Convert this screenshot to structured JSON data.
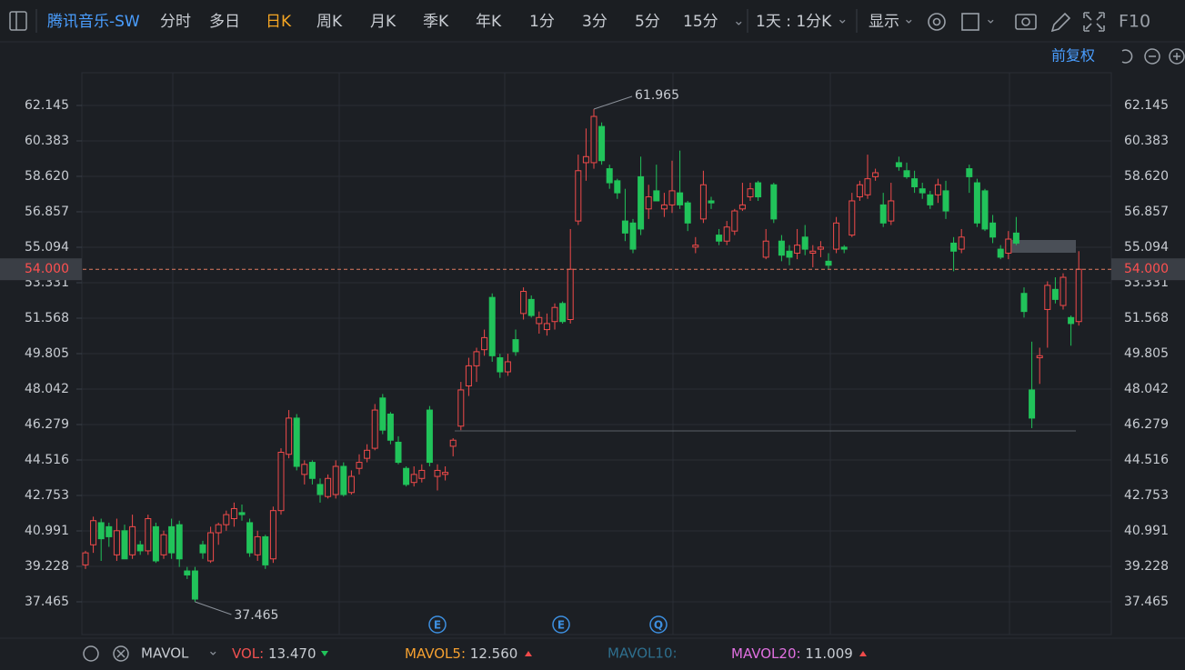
{
  "toolbar": {
    "stock": "腾讯音乐-SW",
    "periods": [
      "分时",
      "多日",
      "日K",
      "周K",
      "月K",
      "季K",
      "年K",
      "1分",
      "3分",
      "5分",
      "15分"
    ],
    "active_period": "日K",
    "interval": "1天 : 1分K",
    "display": "显示",
    "f10": "F10"
  },
  "adjust": "前复权",
  "events": [
    "E",
    "E",
    "Q"
  ],
  "indicator": {
    "name": "MAVOL",
    "vol_label": "VOL:",
    "vol": "13.470",
    "mavol5_label": "MAVOL5:",
    "mavol5": "12.560",
    "mavol10_label": "MAVOL10:",
    "mavol20_label": "MAVOL20:",
    "mavol20": "11.009"
  },
  "chart_data": {
    "type": "candlestick",
    "up_color": "#f04a4a",
    "down_color": "#21c35a",
    "grid": true,
    "ylim": [
      35.838,
      63.772
    ],
    "yticks": [
      62.145,
      60.383,
      {
        "value": 58.62,
        "label": "58.620"
      },
      56.857,
      55.094,
      53.331,
      51.568,
      49.805,
      48.042,
      46.279,
      44.516,
      42.753,
      40.991,
      39.228,
      37.465
    ],
    "current": {
      "value": 54,
      "label": "54.000"
    },
    "open": [
      39.3,
      40.3,
      41.4,
      41.2,
      39.8,
      41.0,
      39.8,
      40.3,
      40.0,
      41.2,
      39.8,
      41.2,
      41.3,
      39.0,
      39.0,
      40.3,
      39.5,
      40.9,
      41.3,
      41.6,
      41.9,
      41.4,
      39.8,
      40.7,
      39.6,
      42.0,
      44.8,
      46.6,
      43.8,
      44.4,
      43.3,
      42.7,
      42.8,
      44.2,
      42.9,
      44.1,
      44.6,
      45.1,
      47.6,
      46.8,
      45.4,
      44.1,
      43.4,
      43.6,
      47.0,
      43.7,
      43.8,
      45.2,
      46.2,
      48.2,
      49.2,
      50.0,
      52.6,
      49.6,
      48.9,
      50.5,
      51.8,
      52.5,
      51.3,
      51.0,
      51.4,
      52.3,
      51.5,
      56.4,
      59.3,
      59.3,
      61.1,
      59.0,
      58.4,
      56.4,
      56.3,
      58.6,
      57.0,
      57.9,
      57.0,
      57.2,
      57.8,
      57.3,
      55.1,
      56.5,
      57.4,
      55.7,
      55.4,
      55.9,
      57.0,
      57.6,
      58.3,
      54.6,
      58.2,
      55.4,
      54.9,
      54.8,
      55.6,
      54.8,
      55.0,
      54.4,
      55.0,
      55.1,
      55.7,
      57.6,
      57.7,
      58.6,
      57.2,
      56.4,
      59.3,
      58.9,
      58.5,
      58.0,
      57.7,
      57.7,
      57.9,
      55.3,
      55.0,
      59.0,
      58.3,
      57.9,
      56.3,
      55.0,
      54.8,
      55.8,
      52.8,
      48.0,
      49.6,
      52.0,
      53.0,
      52.2,
      51.6,
      51.4
    ],
    "high": [
      40.0,
      41.7,
      41.6,
      41.4,
      41.6,
      41.3,
      41.8,
      40.5,
      41.8,
      41.4,
      41.0,
      41.6,
      41.5,
      39.2,
      39.2,
      40.5,
      41.2,
      41.4,
      42.0,
      42.4,
      42.3,
      41.6,
      41.0,
      40.8,
      42.2,
      45.1,
      47.0,
      46.8,
      44.5,
      44.5,
      43.6,
      43.8,
      44.5,
      44.4,
      44.0,
      44.8,
      45.3,
      47.3,
      47.8,
      46.9,
      45.7,
      44.2,
      44.2,
      44.3,
      47.2,
      44.3,
      44.2,
      45.6,
      48.4,
      49.6,
      50.1,
      51.0,
      52.8,
      49.8,
      49.8,
      51.0,
      53.1,
      52.7,
      51.9,
      51.8,
      52.3,
      52.4,
      56.0,
      59.7,
      61.0,
      61.965,
      61.3,
      59.2,
      58.5,
      58.0,
      56.5,
      59.6,
      58.2,
      59.2,
      57.8,
      59.4,
      59.9,
      57.4,
      55.6,
      58.9,
      57.6,
      56.0,
      56.4,
      57.0,
      58.3,
      58.3,
      58.4,
      56.0,
      58.3,
      55.7,
      55.2,
      56.0,
      56.2,
      55.2,
      55.4,
      54.8,
      56.6,
      55.2,
      57.8,
      58.4,
      59.7,
      59.0,
      57.8,
      58.3,
      59.6,
      59.3,
      58.9,
      58.3,
      57.9,
      58.5,
      58.4,
      55.6,
      56.0,
      59.2,
      58.5,
      58.0,
      56.7,
      55.2,
      55.9,
      56.6,
      53.1,
      50.4,
      50.1,
      53.4,
      53.6,
      53.8,
      51.7,
      54.9
    ],
    "low": [
      39.1,
      39.9,
      39.5,
      40.2,
      39.5,
      39.6,
      39.6,
      39.8,
      39.8,
      39.4,
      39.6,
      39.6,
      39.2,
      38.6,
      37.465,
      39.6,
      39.4,
      40.3,
      41.0,
      41.2,
      41.5,
      39.7,
      39.5,
      39.1,
      39.4,
      41.8,
      44.6,
      44.0,
      43.3,
      43.3,
      42.4,
      42.6,
      42.6,
      42.7,
      42.8,
      43.8,
      44.4,
      45.0,
      45.8,
      45.3,
      44.3,
      43.2,
      43.2,
      43.4,
      44.2,
      43.0,
      43.5,
      44.7,
      46.0,
      47.7,
      48.4,
      49.7,
      49.4,
      48.6,
      48.7,
      49.7,
      51.5,
      51.6,
      50.8,
      50.7,
      51.0,
      51.3,
      51.3,
      56.2,
      58.4,
      59.0,
      59.2,
      58.0,
      57.5,
      55.4,
      54.8,
      55.7,
      56.5,
      57.5,
      56.6,
      56.8,
      57.0,
      55.9,
      54.8,
      56.3,
      57.0,
      55.2,
      55.2,
      55.7,
      56.9,
      57.4,
      57.4,
      54.5,
      56.3,
      54.4,
      54.2,
      54.5,
      54.7,
      54.1,
      54.6,
      54.0,
      54.8,
      54.8,
      55.6,
      57.4,
      57.5,
      58.4,
      56.1,
      56.2,
      58.9,
      58.5,
      57.8,
      57.5,
      57.0,
      57.3,
      56.5,
      53.9,
      54.8,
      57.8,
      56.1,
      55.9,
      55.3,
      54.5,
      54.5,
      55.2,
      51.6,
      46.1,
      48.3,
      50.1,
      52.3,
      52.0,
      50.2,
      51.2
    ],
    "close": [
      39.9,
      41.5,
      40.6,
      40.7,
      41.0,
      39.6,
      41.2,
      40.0,
      41.6,
      39.5,
      40.8,
      39.9,
      39.6,
      38.8,
      37.6,
      39.9,
      40.9,
      41.3,
      41.8,
      42.1,
      41.8,
      39.9,
      40.7,
      39.3,
      42.0,
      44.9,
      46.6,
      44.2,
      44.3,
      43.6,
      42.8,
      43.6,
      44.2,
      42.8,
      43.7,
      44.4,
      45.0,
      47.0,
      46.0,
      45.5,
      44.4,
      43.3,
      43.8,
      44.0,
      44.4,
      44.0,
      43.9,
      45.5,
      48.0,
      49.2,
      49.9,
      50.6,
      49.7,
      48.9,
      49.4,
      49.9,
      52.9,
      51.7,
      51.6,
      51.3,
      52.1,
      51.4,
      54.0,
      58.9,
      59.6,
      61.6,
      59.4,
      58.3,
      57.8,
      55.8,
      55.0,
      56.0,
      57.6,
      57.4,
      57.2,
      57.9,
      57.2,
      56.3,
      55.2,
      58.2,
      57.3,
      55.4,
      56.1,
      56.9,
      57.2,
      58.0,
      57.6,
      55.4,
      56.5,
      54.7,
      54.6,
      55.2,
      55.0,
      54.9,
      55.1,
      54.2,
      56.3,
      55.0,
      57.4,
      58.2,
      58.5,
      58.8,
      56.3,
      57.4,
      59.1,
      58.6,
      58.1,
      57.8,
      57.2,
      58.2,
      56.9,
      54.9,
      55.6,
      58.6,
      56.3,
      56.0,
      55.6,
      54.6,
      55.5,
      55.3,
      51.9,
      46.6,
      49.7,
      53.2,
      52.5,
      53.6,
      51.3,
      54.0
    ]
  }
}
